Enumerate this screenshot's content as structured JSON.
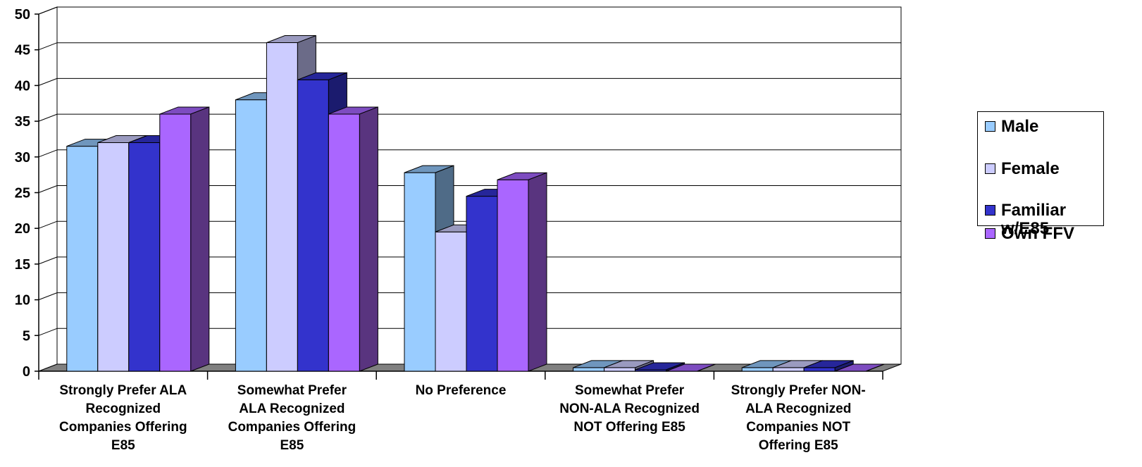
{
  "chart_data": {
    "type": "bar",
    "categories": [
      [
        "Strongly Prefer ALA",
        "Recognized",
        "Companies Offering",
        "E85"
      ],
      [
        "Somewhat Prefer",
        "ALA Recognized",
        "Companies Offering",
        "E85"
      ],
      [
        "No Preference"
      ],
      [
        "Somewhat Prefer",
        "NON-ALA Recognized",
        "NOT Offering E85"
      ],
      [
        "Strongly Prefer NON-",
        "ALA Recognized",
        "Companies NOT",
        "Offering E85"
      ]
    ],
    "series": [
      {
        "name": "Male",
        "values": [
          31.5,
          38,
          27.8,
          0.5,
          0.5
        ],
        "color": "#99ccff",
        "top": "#6f96bd",
        "side": "#4f6b87"
      },
      {
        "name": "Female",
        "values": [
          32,
          46,
          19.5,
          0.5,
          0.5
        ],
        "color": "#ccccff",
        "top": "#9a9abf",
        "side": "#6b6b88"
      },
      {
        "name": "Familiar w/E85",
        "values": [
          32,
          40.8,
          24.5,
          0.2,
          0.5
        ],
        "color": "#3333cc",
        "top": "#26269a",
        "side": "#1b1b6e"
      },
      {
        "name": "Own FFV",
        "values": [
          36,
          36,
          26.8,
          0,
          0
        ],
        "color": "#aa66ff",
        "top": "#7d4cc0",
        "side": "#59347f"
      }
    ],
    "yticks": [
      "0",
      "5",
      "10",
      "15",
      "20",
      "25",
      "30",
      "35",
      "40",
      "45",
      "50"
    ],
    "ylim": [
      0,
      50
    ],
    "grid": true,
    "legend_position": "right",
    "title": "",
    "xlabel": "",
    "ylabel": ""
  },
  "legend": {
    "items": [
      {
        "label": "Male",
        "color": "#99ccff"
      },
      {
        "label": "Female",
        "color": "#ccccff"
      },
      {
        "label": "Familiar w/E85",
        "color": "#3333cc"
      },
      {
        "label": "Own FFV",
        "color": "#aa66ff"
      }
    ]
  }
}
